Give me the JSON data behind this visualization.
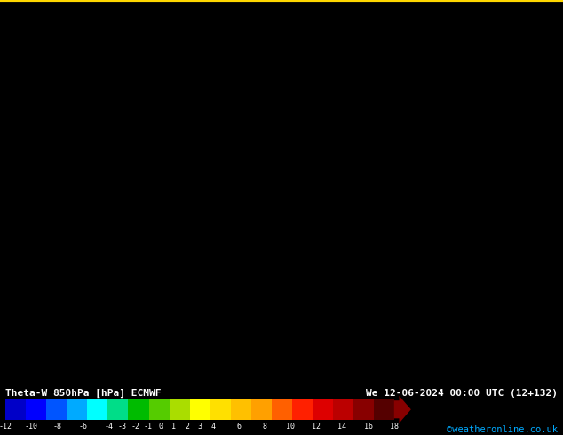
{
  "title_left": "Theta-W 850hPa [hPa] ECMWF",
  "title_right": "We 12-06-2024 00:00 UTC (12+132)",
  "credit": "©weatheronline.co.uk",
  "colorbar_ticks": [
    -12,
    -10,
    -8,
    -6,
    -4,
    -3,
    -2,
    -1,
    0,
    1,
    2,
    3,
    4,
    6,
    8,
    10,
    12,
    14,
    16,
    18
  ],
  "colorbar_labels": [
    "-12",
    "-10",
    "-8",
    "-6",
    "-4",
    "-3",
    "-2",
    "-1",
    "0",
    "1",
    "2",
    "3",
    "4",
    "6",
    "8",
    "10",
    "12",
    "14",
    "16",
    "18"
  ],
  "colorbar_colors": [
    "#0000C8",
    "#0000FF",
    "#0055FF",
    "#00AAFF",
    "#00FFFF",
    "#00DD88",
    "#00BB00",
    "#55CC00",
    "#AADD00",
    "#FFFF00",
    "#FFE000",
    "#FFC000",
    "#FFA000",
    "#FF6000",
    "#FF2000",
    "#DD0000",
    "#BB0000",
    "#880000",
    "#550000"
  ],
  "map_bg_color": "#CC0000",
  "top_border_color": "#FFD700",
  "fig_width": 6.34,
  "fig_height": 4.9,
  "dpi": 100,
  "colorbar_arrow_color": "#880000"
}
